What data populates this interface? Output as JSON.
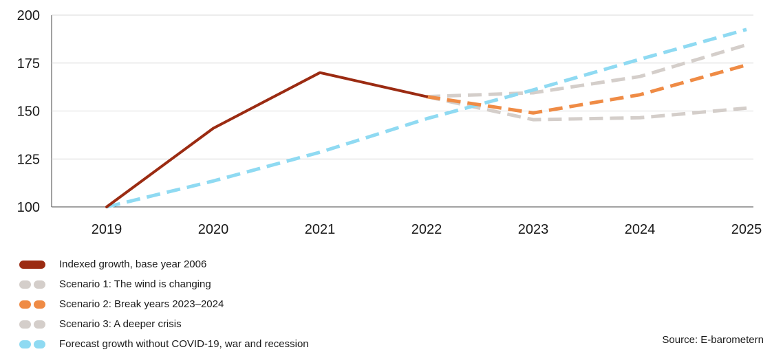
{
  "chart_data": {
    "type": "line",
    "x_ticks": [
      "2019",
      "2020",
      "2021",
      "2022",
      "2023",
      "2024",
      "2025"
    ],
    "y_ticks": [
      100,
      125,
      150,
      175,
      200
    ],
    "ylim": [
      100,
      200
    ],
    "grid": true,
    "series": [
      {
        "name": "Indexed growth, base year 2006",
        "style": "solid",
        "color": "#9b2b12",
        "points": [
          [
            2019,
            100
          ],
          [
            2020,
            141
          ],
          [
            2021,
            170
          ],
          [
            2022,
            157.5
          ]
        ]
      },
      {
        "name": "Scenario 1: The wind is changing",
        "style": "dashed",
        "color": "#d4ceca",
        "points": [
          [
            2022,
            157.5
          ],
          [
            2023,
            159.5
          ],
          [
            2024,
            168
          ],
          [
            2025,
            184.5
          ]
        ]
      },
      {
        "name": "Scenario 2: Break years 2023–2024",
        "style": "dashed",
        "color": "#ef8b45",
        "points": [
          [
            2022,
            157.5
          ],
          [
            2023,
            149
          ],
          [
            2024,
            158.5
          ],
          [
            2025,
            174
          ]
        ]
      },
      {
        "name": "Scenario 3: A deeper crisis",
        "style": "dashed",
        "color": "#d4ceca",
        "points": [
          [
            2022,
            157.5
          ],
          [
            2023,
            145.5
          ],
          [
            2024,
            146.5
          ],
          [
            2025,
            151.5
          ]
        ]
      },
      {
        "name": "Forecast growth without COVID-19, war and recession",
        "style": "dashed",
        "color": "#8fdaf2",
        "points": [
          [
            2019,
            100
          ],
          [
            2020,
            113.5
          ],
          [
            2021,
            128.5
          ],
          [
            2022,
            146
          ],
          [
            2023,
            161
          ],
          [
            2024,
            177
          ],
          [
            2025,
            192.5
          ]
        ]
      }
    ]
  },
  "legend": [
    {
      "label": "Indexed growth, base year 2006",
      "style": "solid",
      "color": "#9b2b12"
    },
    {
      "label": "Scenario 1: The wind is changing",
      "style": "dashed",
      "color": "#d4ceca"
    },
    {
      "label": "Scenario 2: Break years 2023–2024",
      "style": "dashed",
      "color": "#ef8b45"
    },
    {
      "label": "Scenario 3: A deeper crisis",
      "style": "dashed",
      "color": "#d4ceca"
    },
    {
      "label": "Forecast growth without COVID-19, war and recession",
      "style": "dashed",
      "color": "#8fdaf2"
    }
  ],
  "source": "Source: E-barometern"
}
